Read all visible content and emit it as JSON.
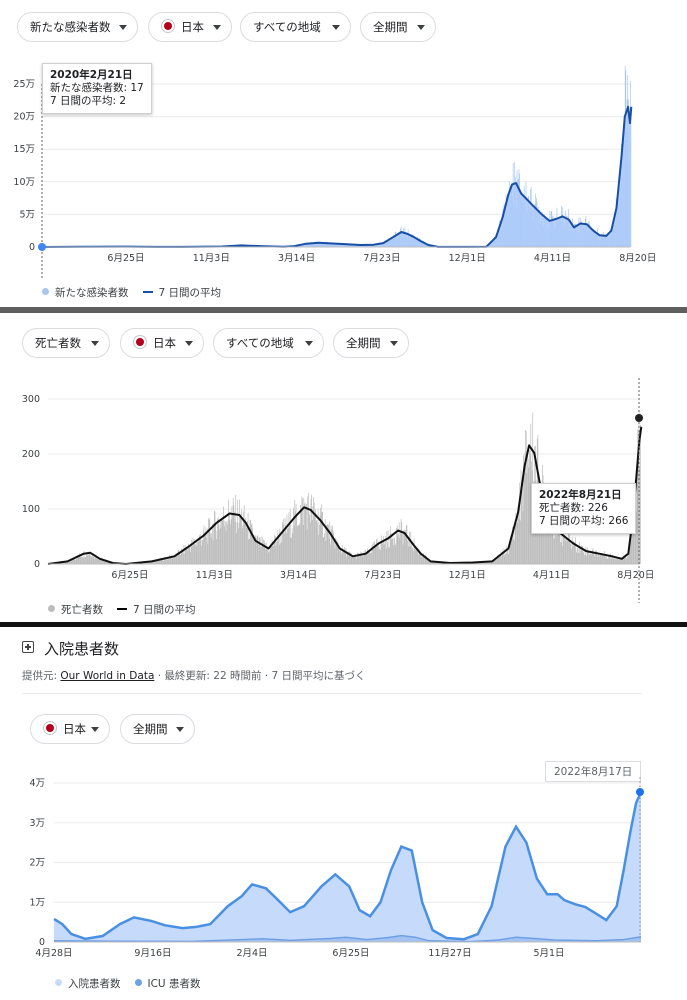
{
  "panel1": {
    "filters": {
      "metric": "新たな感染者数",
      "country": "日本",
      "region": "すべての地域",
      "period": "全期間"
    },
    "y_ticks": [
      "25万",
      "20万",
      "15万",
      "10万",
      "5万",
      "0"
    ],
    "x_ticks": [
      "6月25日",
      "11月3日",
      "3月14日",
      "7月23日",
      "12月1日",
      "4月11日",
      "8月20日"
    ],
    "legend": {
      "bars": "新たな感染者数",
      "line": "7 日間の平均"
    },
    "tooltip": {
      "date": "2020年2月21日",
      "line1": "新たな感染者数: 17",
      "line2": "7 日間の平均: 2"
    },
    "colors": {
      "bar": "#aecbfa",
      "line": "#174ea6",
      "dot": "#4285f4"
    }
  },
  "panel2": {
    "filters": {
      "metric": "死亡者数",
      "country": "日本",
      "region": "すべての地域",
      "period": "全期間"
    },
    "y_ticks": [
      "300",
      "200",
      "100",
      "0"
    ],
    "x_ticks": [
      "6月25日",
      "11月3日",
      "3月14日",
      "7月23日",
      "12月1日",
      "4月11日",
      "8月20日"
    ],
    "legend": {
      "bars": "死亡者数",
      "line": "7 日間の平均"
    },
    "tooltip": {
      "date": "2022年8月21日",
      "line1": "死亡者数: 226",
      "line2": "7 日間の平均: 266"
    },
    "colors": {
      "bar": "#bdbdbd",
      "line": "#000000"
    }
  },
  "panel3": {
    "title": "入院患者数",
    "source_prefix": "提供元: ",
    "source_link": "Our World in Data",
    "source_suffix": " · 最終更新: 22 時間前 · 7 日間平均に基づく",
    "filters": {
      "country": "日本",
      "period": "全期間"
    },
    "date_label": "2022年8月17日",
    "y_ticks": [
      "4万",
      "3万",
      "2万",
      "1万",
      "0"
    ],
    "x_ticks": [
      "4月28日",
      "9月16日",
      "2月4日",
      "6月25日",
      "11月27日",
      "5月1日"
    ],
    "legend": {
      "hospital": "入院患者数",
      "icu": "ICU 患者数"
    },
    "colors": {
      "hospital": "#c6dafc",
      "hospital_line": "#4a90e2",
      "icu": "#6fa0e6"
    }
  },
  "chart_data": [
    {
      "type": "line",
      "title": "",
      "ylabel": "新たな感染者数",
      "ylim": [
        0,
        250000
      ],
      "x_index_range": [
        0,
        913
      ],
      "series": [
        {
          "name": "7 日間の平均",
          "points": [
            [
              0,
              2
            ],
            [
              60,
              300
            ],
            [
              130,
              600
            ],
            [
              175,
              150
            ],
            [
              220,
              100
            ],
            [
              280,
              700
            ],
            [
              310,
              2500
            ],
            [
              322,
              2000
            ],
            [
              345,
              1000
            ],
            [
              375,
              400
            ],
            [
              390,
              1000
            ],
            [
              410,
              5000
            ],
            [
              430,
              6500
            ],
            [
              440,
              6000
            ],
            [
              470,
              4500
            ],
            [
              495,
              3000
            ],
            [
              515,
              3500
            ],
            [
              530,
              6000
            ],
            [
              545,
              15000
            ],
            [
              558,
              23000
            ],
            [
              568,
              20000
            ],
            [
              578,
              15000
            ],
            [
              588,
              9000
            ],
            [
              600,
              3000
            ],
            [
              615,
              200
            ],
            [
              655,
              150
            ],
            [
              690,
              500
            ],
            [
              705,
              15000
            ],
            [
              715,
              45000
            ],
            [
              724,
              80000
            ],
            [
              730,
              96000
            ],
            [
              736,
              98000
            ],
            [
              744,
              82000
            ],
            [
              756,
              70000
            ],
            [
              766,
              60000
            ],
            [
              776,
              50000
            ],
            [
              788,
              40000
            ],
            [
              798,
              43000
            ],
            [
              808,
              47000
            ],
            [
              818,
              42000
            ],
            [
              826,
              30000
            ],
            [
              836,
              36000
            ],
            [
              846,
              35000
            ],
            [
              856,
              25000
            ],
            [
              866,
              18000
            ],
            [
              876,
              17000
            ],
            [
              884,
              25000
            ],
            [
              892,
              60000
            ],
            [
              900,
              140000
            ],
            [
              905,
              200000
            ],
            [
              910,
              215000
            ],
            [
              913,
              190000
            ],
            [
              915,
              215000
            ]
          ]
        }
      ]
    },
    {
      "type": "line",
      "title": "",
      "ylabel": "死亡者数",
      "ylim": [
        0,
        320
      ],
      "x_index_range": [
        0,
        913
      ],
      "series": [
        {
          "name": "7 日間の平均",
          "points": [
            [
              0,
              0
            ],
            [
              30,
              5
            ],
            [
              55,
              20
            ],
            [
              65,
              22
            ],
            [
              80,
              10
            ],
            [
              100,
              2
            ],
            [
              120,
              0
            ],
            [
              160,
              5
            ],
            [
              195,
              15
            ],
            [
              215,
              32
            ],
            [
              240,
              55
            ],
            [
              260,
              80
            ],
            [
              280,
              98
            ],
            [
              295,
              95
            ],
            [
              305,
              80
            ],
            [
              320,
              45
            ],
            [
              340,
              30
            ],
            [
              360,
              60
            ],
            [
              380,
              90
            ],
            [
              395,
              110
            ],
            [
              405,
              105
            ],
            [
              420,
              85
            ],
            [
              435,
              60
            ],
            [
              450,
              30
            ],
            [
              470,
              15
            ],
            [
              490,
              20
            ],
            [
              510,
              40
            ],
            [
              525,
              50
            ],
            [
              540,
              65
            ],
            [
              550,
              60
            ],
            [
              565,
              35
            ],
            [
              575,
              20
            ],
            [
              590,
              5
            ],
            [
              620,
              2
            ],
            [
              655,
              3
            ],
            [
              685,
              5
            ],
            [
              710,
              30
            ],
            [
              725,
              100
            ],
            [
              735,
              190
            ],
            [
              742,
              230
            ],
            [
              750,
              215
            ],
            [
              758,
              160
            ],
            [
              770,
              100
            ],
            [
              790,
              60
            ],
            [
              810,
              40
            ],
            [
              830,
              25
            ],
            [
              850,
              20
            ],
            [
              870,
              15
            ],
            [
              885,
              10
            ],
            [
              895,
              20
            ],
            [
              903,
              100
            ],
            [
              908,
              180
            ],
            [
              912,
              240
            ],
            [
              915,
              266
            ]
          ]
        }
      ]
    },
    {
      "type": "area",
      "title": "入院患者数",
      "ylim": [
        0,
        40000
      ],
      "x_index_range": [
        0,
        845
      ],
      "series": [
        {
          "name": "入院患者数",
          "points": [
            [
              0,
              5800
            ],
            [
              12,
              4500
            ],
            [
              25,
              2000
            ],
            [
              45,
              800
            ],
            [
              70,
              1500
            ],
            [
              95,
              4500
            ],
            [
              115,
              6200
            ],
            [
              140,
              5300
            ],
            [
              160,
              4200
            ],
            [
              185,
              3500
            ],
            [
              205,
              3800
            ],
            [
              225,
              4500
            ],
            [
              250,
              9000
            ],
            [
              270,
              11500
            ],
            [
              285,
              14500
            ],
            [
              305,
              13500
            ],
            [
              320,
              11000
            ],
            [
              340,
              7500
            ],
            [
              360,
              9000
            ],
            [
              385,
              14000
            ],
            [
              405,
              17000
            ],
            [
              425,
              14000
            ],
            [
              440,
              8000
            ],
            [
              455,
              6500
            ],
            [
              470,
              10000
            ],
            [
              485,
              18000
            ],
            [
              500,
              24000
            ],
            [
              515,
              23000
            ],
            [
              530,
              10000
            ],
            [
              545,
              3000
            ],
            [
              565,
              1000
            ],
            [
              590,
              700
            ],
            [
              610,
              2000
            ],
            [
              630,
              9000
            ],
            [
              650,
              24000
            ],
            [
              665,
              29000
            ],
            [
              680,
              25000
            ],
            [
              695,
              16000
            ],
            [
              710,
              12000
            ],
            [
              725,
              12000
            ],
            [
              735,
              10500
            ],
            [
              750,
              9500
            ],
            [
              765,
              8800
            ],
            [
              780,
              7200
            ],
            [
              795,
              5500
            ],
            [
              810,
              9000
            ],
            [
              820,
              18000
            ],
            [
              830,
              28000
            ],
            [
              838,
              35000
            ],
            [
              845,
              37700
            ]
          ]
        },
        {
          "name": "ICU 患者数",
          "points": [
            [
              0,
              300
            ],
            [
              100,
              200
            ],
            [
              200,
              150
            ],
            [
              300,
              800
            ],
            [
              340,
              400
            ],
            [
              400,
              900
            ],
            [
              420,
              1200
            ],
            [
              450,
              600
            ],
            [
              480,
              1100
            ],
            [
              500,
              1600
            ],
            [
              520,
              1200
            ],
            [
              540,
              300
            ],
            [
              600,
              100
            ],
            [
              640,
              500
            ],
            [
              665,
              1200
            ],
            [
              690,
              900
            ],
            [
              720,
              500
            ],
            [
              780,
              300
            ],
            [
              820,
              600
            ],
            [
              845,
              1300
            ]
          ]
        }
      ]
    }
  ]
}
